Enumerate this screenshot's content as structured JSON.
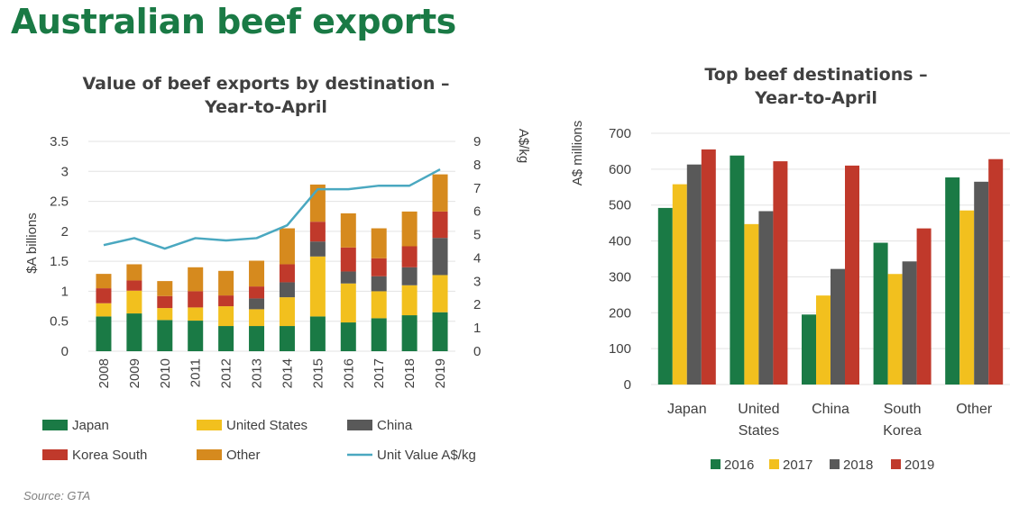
{
  "page": {
    "title": "Australian beef exports",
    "source": "Source: GTA"
  },
  "colors": {
    "title": "#1a7a45",
    "japan": "#1a7a45",
    "united_states": "#f2c01e",
    "china": "#595959",
    "korea_south": "#c0392b",
    "other": "#d68a1e",
    "unit_value": "#4aa8c0",
    "year_2016": "#1a7a45",
    "year_2017": "#f2c01e",
    "year_2018": "#595959",
    "year_2019": "#c0392b"
  },
  "chart_data": [
    {
      "type": "bar",
      "stacked": true,
      "title": "Value of beef exports by destination – Year-to-April",
      "title_lines": [
        "Value of beef exports by destination –",
        "Year-to-April"
      ],
      "ylabel": "$A billions",
      "y2label": "A$/kg",
      "ylim": [
        0,
        3.5
      ],
      "y2lim": [
        0,
        9
      ],
      "yticks": [
        "0",
        "0.5",
        "1",
        "1.5",
        "2",
        "2.5",
        "3",
        "3.5"
      ],
      "y2ticks": [
        "0",
        "1",
        "2",
        "3",
        "4",
        "5",
        "6",
        "7",
        "8",
        "9"
      ],
      "categories": [
        "2008",
        "2009",
        "2010",
        "2011",
        "2012",
        "2013",
        "2014",
        "2015",
        "2016",
        "2017",
        "2018",
        "2019"
      ],
      "series": [
        {
          "name": "Japan",
          "color_key": "japan",
          "values": [
            0.58,
            0.63,
            0.52,
            0.51,
            0.42,
            0.42,
            0.42,
            0.58,
            0.48,
            0.55,
            0.6,
            0.65
          ]
        },
        {
          "name": "United States",
          "color_key": "united_states",
          "values": [
            0.22,
            0.38,
            0.2,
            0.22,
            0.33,
            0.28,
            0.48,
            1.0,
            0.65,
            0.45,
            0.5,
            0.62
          ]
        },
        {
          "name": "China",
          "color_key": "china",
          "values": [
            0.0,
            0.0,
            0.0,
            0.0,
            0.0,
            0.18,
            0.25,
            0.25,
            0.2,
            0.25,
            0.3,
            0.62
          ]
        },
        {
          "name": "Korea  South",
          "color_key": "korea_south",
          "values": [
            0.25,
            0.17,
            0.2,
            0.27,
            0.18,
            0.2,
            0.3,
            0.33,
            0.4,
            0.3,
            0.35,
            0.44
          ]
        },
        {
          "name": "Other",
          "color_key": "other",
          "values": [
            0.24,
            0.27,
            0.25,
            0.4,
            0.41,
            0.43,
            0.6,
            0.62,
            0.57,
            0.5,
            0.58,
            0.62
          ]
        }
      ],
      "line_series": {
        "name": "Unit Value A$/kg",
        "color_key": "unit_value",
        "axis": "right",
        "values": [
          4.55,
          4.85,
          4.4,
          4.85,
          4.75,
          4.85,
          5.4,
          6.95,
          6.95,
          7.1,
          7.1,
          7.8
        ]
      },
      "legend_position": "bottom",
      "grid": true
    },
    {
      "type": "bar",
      "title": "Top beef destinations – Year-to-April",
      "title_lines": [
        "Top beef destinations –",
        "Year-to-April"
      ],
      "ylabel": "A$ millions",
      "ylim": [
        0,
        700
      ],
      "yticks": [
        "0",
        "100",
        "200",
        "300",
        "400",
        "500",
        "600",
        "700"
      ],
      "categories": [
        [
          "Japan"
        ],
        [
          "United",
          "States"
        ],
        [
          "China"
        ],
        [
          "South",
          "Korea"
        ],
        [
          "Other"
        ]
      ],
      "series": [
        {
          "name": "2016",
          "color_key": "year_2016",
          "values": [
            492,
            638,
            195,
            395,
            577
          ]
        },
        {
          "name": "2017",
          "color_key": "year_2017",
          "values": [
            558,
            447,
            248,
            308,
            485
          ]
        },
        {
          "name": "2018",
          "color_key": "year_2018",
          "values": [
            613,
            483,
            322,
            343,
            565
          ]
        },
        {
          "name": "2019",
          "color_key": "year_2019",
          "values": [
            655,
            622,
            610,
            435,
            628
          ]
        }
      ],
      "legend_position": "bottom",
      "grid": true
    }
  ]
}
